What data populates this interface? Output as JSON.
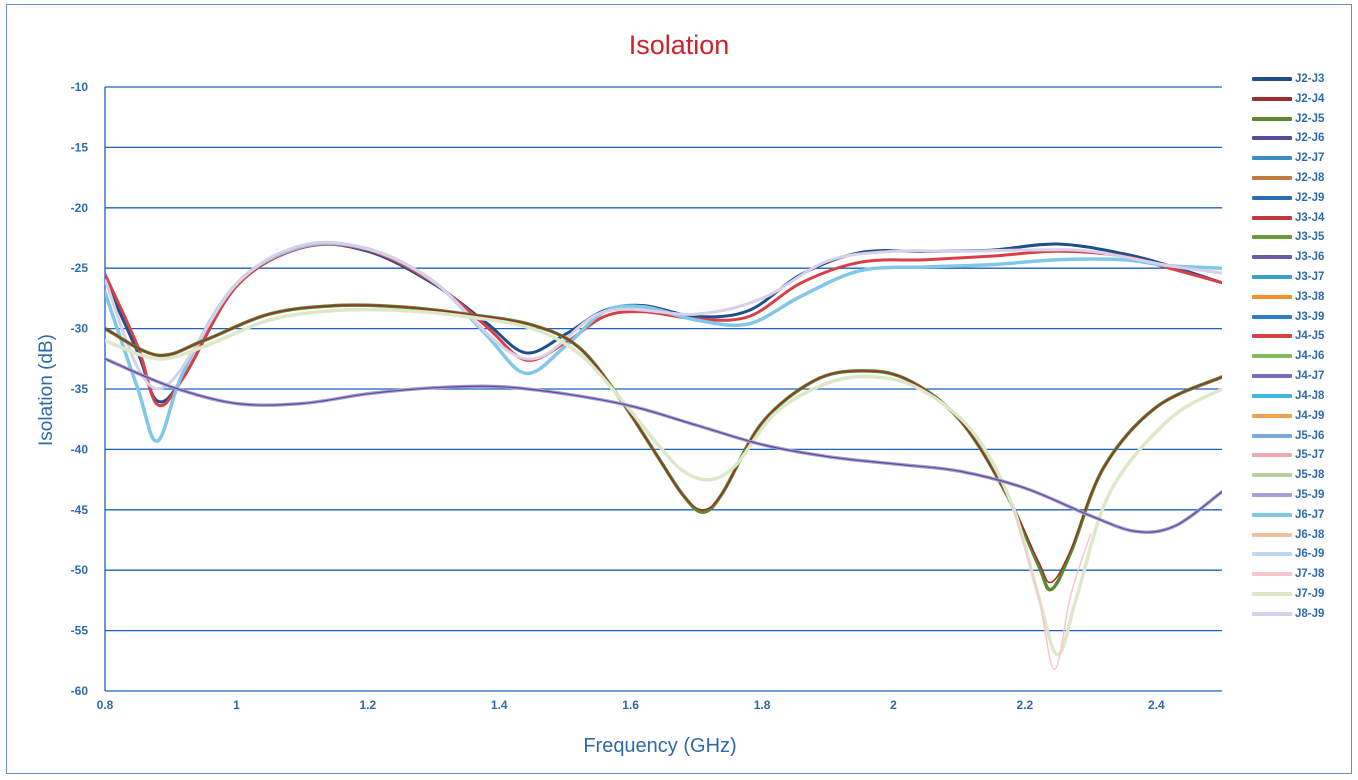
{
  "chart_data": {
    "type": "line",
    "title": "Isolation",
    "xlabel": "Frequency (GHz)",
    "ylabel": "Isolation (dB)",
    "xlim": [
      0.8,
      2.5
    ],
    "ylim": [
      -60,
      -10
    ],
    "x_ticks": [
      "0.8",
      "1",
      "1.2",
      "1.4",
      "1.6",
      "1.8",
      "2",
      "2.2",
      "2.4"
    ],
    "y_ticks": [
      "-10",
      "-15",
      "-20",
      "-25",
      "-30",
      "-35",
      "-40",
      "-45",
      "-50",
      "-55",
      "-60"
    ],
    "grid": "horizontal",
    "legend_position": "right",
    "title_color": "#d0202a",
    "label_color": "#2f6aa8",
    "grid_color": "#1f5fbf",
    "legend": [
      {
        "name": "J2-J3",
        "color": "#1f4e8c"
      },
      {
        "name": "J2-J4",
        "color": "#9b2d30"
      },
      {
        "name": "J2-J5",
        "color": "#5b8a2e"
      },
      {
        "name": "J2-J6",
        "color": "#5a4a9a"
      },
      {
        "name": "J2-J7",
        "color": "#3a8fc0"
      },
      {
        "name": "J2-J8",
        "color": "#c07a40"
      },
      {
        "name": "J2-J9",
        "color": "#2a70b0"
      },
      {
        "name": "J3-J4",
        "color": "#c0393e"
      },
      {
        "name": "J3-J5",
        "color": "#6b9a3a"
      },
      {
        "name": "J3-J6",
        "color": "#6a5aa8"
      },
      {
        "name": "J3-J7",
        "color": "#3aa0c8"
      },
      {
        "name": "J3-J8",
        "color": "#f0902a"
      },
      {
        "name": "J3-J9",
        "color": "#2a80c8"
      },
      {
        "name": "J4-J5",
        "color": "#d84048"
      },
      {
        "name": "J4-J6",
        "color": "#86b85a"
      },
      {
        "name": "J4-J7",
        "color": "#7a6ac0"
      },
      {
        "name": "J4-J8",
        "color": "#40b8e0"
      },
      {
        "name": "J4-J9",
        "color": "#f4a050"
      },
      {
        "name": "J5-J6",
        "color": "#7aa8d8"
      },
      {
        "name": "J5-J7",
        "color": "#f0a8b0"
      },
      {
        "name": "J5-J8",
        "color": "#b8d0a0"
      },
      {
        "name": "J5-J9",
        "color": "#a8a0d0"
      },
      {
        "name": "J6-J7",
        "color": "#80c8e8"
      },
      {
        "name": "J6-J8",
        "color": "#f0c0a0"
      },
      {
        "name": "J6-J9",
        "color": "#c0d8ec"
      },
      {
        "name": "J7-J8",
        "color": "#f4c8cc"
      },
      {
        "name": "J7-J9",
        "color": "#dde8c8"
      },
      {
        "name": "J8-J9",
        "color": "#d8d0e8"
      }
    ],
    "series": [
      {
        "legend": "J2-J3",
        "color": "#1f4e8c",
        "width": 3,
        "x": [
          0.8,
          0.85,
          0.88,
          0.92,
          1.0,
          1.1,
          1.2,
          1.3,
          1.38,
          1.44,
          1.5,
          1.56,
          1.62,
          1.7,
          1.78,
          1.86,
          1.95,
          2.05,
          2.15,
          2.25,
          2.35,
          2.42,
          2.5
        ],
        "y": [
          -26,
          -32,
          -36,
          -34,
          -26.5,
          -23.2,
          -23.6,
          -26.3,
          -29.5,
          -32,
          -30.5,
          -28.5,
          -28.1,
          -29,
          -28.5,
          -25.5,
          -23.7,
          -23.6,
          -23.5,
          -23.0,
          -23.8,
          -24.8,
          -26.2
        ]
      },
      {
        "legend": "J3-J4",
        "color": "#d84048",
        "width": 3,
        "x": [
          0.8,
          0.85,
          0.88,
          0.92,
          1.0,
          1.1,
          1.2,
          1.3,
          1.38,
          1.44,
          1.5,
          1.56,
          1.62,
          1.7,
          1.78,
          1.86,
          1.95,
          2.05,
          2.15,
          2.25,
          2.35,
          2.42,
          2.5
        ],
        "y": [
          -25.5,
          -31.5,
          -36.3,
          -34,
          -26.5,
          -23.3,
          -23.5,
          -26.2,
          -29.8,
          -32.6,
          -31.2,
          -29,
          -28.6,
          -29.2,
          -29.0,
          -26.2,
          -24.5,
          -24.3,
          -24.0,
          -23.6,
          -24.0,
          -25.0,
          -26.2
        ]
      },
      {
        "legend": "J6-J7",
        "color": "#80c8e8",
        "width": 3.5,
        "x": [
          0.8,
          0.85,
          0.88,
          0.92,
          1.0,
          1.1,
          1.2,
          1.3,
          1.38,
          1.44,
          1.5,
          1.56,
          1.62,
          1.7,
          1.78,
          1.86,
          1.95,
          2.05,
          2.15,
          2.25,
          2.35,
          2.42,
          2.5
        ],
        "y": [
          -27,
          -35,
          -39.3,
          -33.5,
          -26.3,
          -23.2,
          -23.4,
          -26.1,
          -30.5,
          -33.7,
          -31.5,
          -28.6,
          -28.2,
          -29.3,
          -29.6,
          -27.3,
          -25.2,
          -24.9,
          -24.7,
          -24.3,
          -24.3,
          -24.8,
          -25.0
        ]
      },
      {
        "legend": "J8-J9",
        "color": "#d8d0e8",
        "width": 3,
        "x": [
          0.8,
          0.88,
          1.0,
          1.1,
          1.2,
          1.3,
          1.44,
          1.56,
          1.7,
          1.8,
          1.9,
          2.0,
          2.1,
          2.2,
          2.3,
          2.42,
          2.5
        ],
        "y": [
          -26,
          -35,
          -26.3,
          -23.1,
          -23.4,
          -26.1,
          -32.5,
          -28.6,
          -28.8,
          -27.5,
          -24.4,
          -23.6,
          -23.6,
          -23.5,
          -23.6,
          -24.8,
          -25.4
        ]
      },
      {
        "legend": "J2-J5",
        "color": "#5b8a2e",
        "width": 3.5,
        "x": [
          0.8,
          0.88,
          0.95,
          1.05,
          1.15,
          1.25,
          1.35,
          1.45,
          1.52,
          1.58,
          1.64,
          1.68,
          1.71,
          1.74,
          1.8,
          1.88,
          1.95,
          2.02,
          2.1,
          2.17,
          2.22,
          2.24,
          2.27,
          2.32,
          2.4,
          2.5
        ],
        "y": [
          -30,
          -32.2,
          -31,
          -28.8,
          -28.1,
          -28.2,
          -28.8,
          -29.7,
          -31.5,
          -35.5,
          -40.5,
          -43.8,
          -45.2,
          -43.6,
          -37.8,
          -34.3,
          -33.5,
          -34.2,
          -37.5,
          -43.5,
          -49.5,
          -51.6,
          -48.5,
          -41.5,
          -36.5,
          -34
        ]
      },
      {
        "legend": "J2-J4",
        "color": "#9b2d30",
        "width": 1.5,
        "x": [
          0.8,
          0.88,
          0.95,
          1.05,
          1.15,
          1.25,
          1.35,
          1.45,
          1.52,
          1.58,
          1.64,
          1.68,
          1.71,
          1.74,
          1.8,
          1.88,
          1.95,
          2.02,
          2.1,
          2.17,
          2.22,
          2.24,
          2.27,
          2.32,
          2.4,
          2.5
        ],
        "y": [
          -30,
          -32.2,
          -31,
          -28.8,
          -28.1,
          -28.2,
          -28.8,
          -29.7,
          -31.5,
          -35.5,
          -40.5,
          -43.8,
          -45,
          -43.6,
          -37.8,
          -34.3,
          -33.5,
          -34.2,
          -37.5,
          -43.5,
          -49.2,
          -51,
          -48.3,
          -41.5,
          -36.5,
          -34
        ]
      },
      {
        "legend": "J7-J9",
        "color": "#dde8c8",
        "width": 3.5,
        "x": [
          0.8,
          0.88,
          0.95,
          1.05,
          1.15,
          1.25,
          1.35,
          1.45,
          1.52,
          1.58,
          1.64,
          1.68,
          1.72,
          1.76,
          1.82,
          1.9,
          1.97,
          2.04,
          2.12,
          2.18,
          2.22,
          2.25,
          2.28,
          2.33,
          2.42,
          2.5
        ],
        "y": [
          -31,
          -32.5,
          -31.5,
          -29.3,
          -28.5,
          -28.5,
          -29,
          -30,
          -32,
          -35.5,
          -39.5,
          -41.8,
          -42.5,
          -41.3,
          -37,
          -34.5,
          -34,
          -35,
          -38.5,
          -44.5,
          -52,
          -57,
          -52,
          -43.5,
          -37.5,
          -35
        ]
      },
      {
        "legend": "J7-J8",
        "color": "#f4c8cc",
        "width": 1.5,
        "x": [
          2.18,
          2.22,
          2.245,
          2.27,
          2.3
        ],
        "y": [
          -44.5,
          -52,
          -58.2,
          -52,
          -47
        ]
      },
      {
        "legend": "J5-J9",
        "color": "#a8a0d0",
        "width": 3.5,
        "x": [
          0.8,
          0.9,
          1.0,
          1.1,
          1.2,
          1.3,
          1.4,
          1.5,
          1.6,
          1.7,
          1.8,
          1.9,
          2.0,
          2.1,
          2.2,
          2.3,
          2.37,
          2.43,
          2.5
        ],
        "y": [
          -32.5,
          -34.8,
          -36.2,
          -36.2,
          -35.4,
          -34.9,
          -34.8,
          -35.4,
          -36.4,
          -38,
          -39.6,
          -40.6,
          -41.2,
          -41.8,
          -43.2,
          -45.5,
          -46.8,
          -46.3,
          -43.5
        ]
      },
      {
        "legend": "J2-J6",
        "color": "#5a4a9a",
        "width": 1.2,
        "x": [
          0.8,
          0.9,
          1.0,
          1.1,
          1.2,
          1.3,
          1.4,
          1.5,
          1.6,
          1.7,
          1.8,
          1.9,
          2.0,
          2.1,
          2.2,
          2.3,
          2.37,
          2.43,
          2.5
        ],
        "y": [
          -32.5,
          -34.8,
          -36.2,
          -36.2,
          -35.4,
          -34.9,
          -34.8,
          -35.4,
          -36.4,
          -38,
          -39.6,
          -40.6,
          -41.2,
          -41.8,
          -43.2,
          -45.5,
          -46.8,
          -46.3,
          -43.5
        ]
      }
    ]
  }
}
